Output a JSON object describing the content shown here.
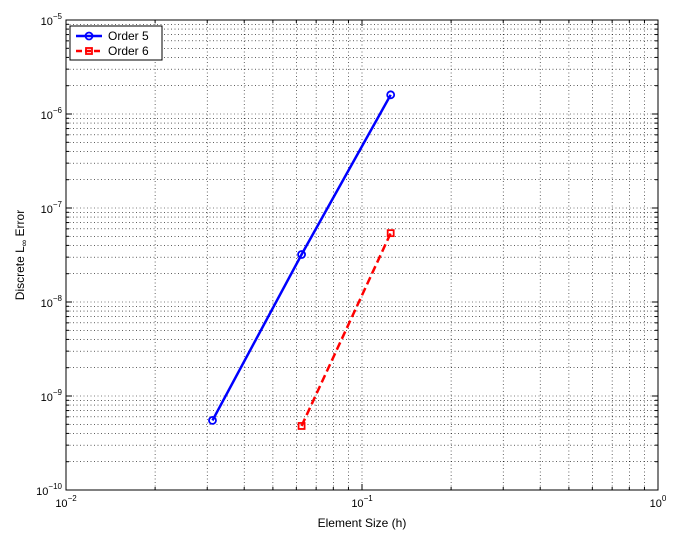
{
  "chart_data": {
    "type": "line",
    "xscale": "log",
    "yscale": "log",
    "xlim": [
      0.01,
      1
    ],
    "ylim": [
      1e-10,
      1e-05
    ],
    "grid": true,
    "legend_position": "top-left",
    "xlabel": "Element Size (h)",
    "ylabel": {
      "main": "Discrete L",
      "subscript": "∞",
      "suffix": " Error"
    },
    "xticks": [
      {
        "value": 0.01,
        "base": "10",
        "exp": "−2"
      },
      {
        "value": 0.1,
        "base": "10",
        "exp": "−1"
      },
      {
        "value": 1,
        "base": "10",
        "exp": "0"
      }
    ],
    "yticks": [
      {
        "value": 1e-10,
        "base": "10",
        "exp": "−10"
      },
      {
        "value": 1e-09,
        "base": "10",
        "exp": "−9"
      },
      {
        "value": 1e-08,
        "base": "10",
        "exp": "−8"
      },
      {
        "value": 1e-07,
        "base": "10",
        "exp": "−7"
      },
      {
        "value": 1e-06,
        "base": "10",
        "exp": "−6"
      },
      {
        "value": 1e-05,
        "base": "10",
        "exp": "−5"
      }
    ],
    "series": [
      {
        "name": "Order 5",
        "color": "#0000ff",
        "line_style": "solid",
        "marker": "circle",
        "x": [
          0.03125,
          0.0625,
          0.125
        ],
        "y": [
          5.5e-10,
          3.2e-08,
          1.6e-06
        ]
      },
      {
        "name": "Order 6",
        "color": "#ff0000",
        "line_style": "dashed",
        "marker": "square",
        "x": [
          0.0625,
          0.125
        ],
        "y": [
          4.8e-10,
          5.4e-08
        ]
      }
    ]
  }
}
